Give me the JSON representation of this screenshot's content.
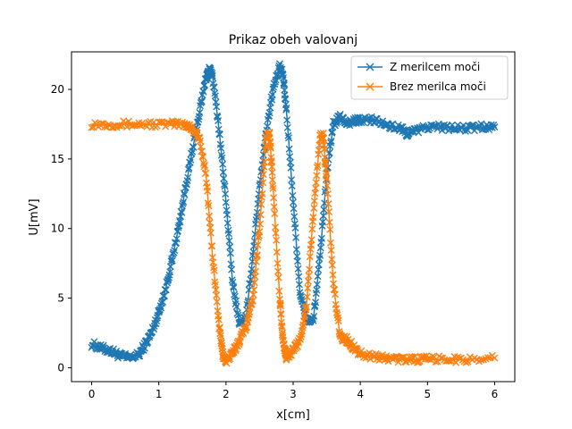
{
  "chart_data": {
    "type": "line",
    "title": "Prikaz obeh valovanj",
    "xlabel": "x[cm]",
    "ylabel": "U[mV]",
    "xlim": [
      -0.3,
      6.3
    ],
    "ylim": [
      -1.0,
      22.7
    ],
    "x_ticks": [
      0,
      1,
      2,
      3,
      4,
      5,
      6
    ],
    "y_ticks": [
      0,
      5,
      10,
      15,
      20
    ],
    "grid": false,
    "legend_position": "upper right",
    "marker": "x",
    "series": [
      {
        "name": "Z merilcem moči",
        "color": "#1f77b4",
        "points": [
          [
            0.0,
            1.7
          ],
          [
            0.15,
            1.4
          ],
          [
            0.3,
            1.2
          ],
          [
            0.4,
            0.9
          ],
          [
            0.55,
            0.7
          ],
          [
            0.7,
            0.9
          ],
          [
            0.8,
            1.7
          ],
          [
            0.9,
            2.6
          ],
          [
            1.0,
            4.0
          ],
          [
            1.1,
            5.6
          ],
          [
            1.2,
            7.8
          ],
          [
            1.3,
            10.2
          ],
          [
            1.4,
            13.0
          ],
          [
            1.5,
            15.6
          ],
          [
            1.6,
            18.2
          ],
          [
            1.7,
            20.8
          ],
          [
            1.75,
            21.4
          ],
          [
            1.8,
            21.0
          ],
          [
            1.9,
            17.0
          ],
          [
            2.0,
            12.0
          ],
          [
            2.1,
            6.0
          ],
          [
            2.2,
            3.2
          ],
          [
            2.3,
            3.6
          ],
          [
            2.4,
            8.0
          ],
          [
            2.5,
            13.0
          ],
          [
            2.6,
            17.0
          ],
          [
            2.7,
            20.0
          ],
          [
            2.8,
            21.6
          ],
          [
            2.85,
            21.0
          ],
          [
            2.9,
            18.5
          ],
          [
            3.0,
            12.0
          ],
          [
            3.1,
            5.5
          ],
          [
            3.2,
            3.4
          ],
          [
            3.3,
            3.4
          ],
          [
            3.4,
            8.0
          ],
          [
            3.5,
            14.0
          ],
          [
            3.6,
            17.5
          ],
          [
            3.7,
            18.0
          ],
          [
            3.8,
            17.6
          ],
          [
            3.9,
            17.7
          ],
          [
            4.0,
            17.8
          ],
          [
            4.2,
            17.8
          ],
          [
            4.4,
            17.4
          ],
          [
            4.6,
            17.2
          ],
          [
            4.7,
            16.8
          ],
          [
            4.8,
            17.0
          ],
          [
            5.0,
            17.3
          ],
          [
            5.2,
            17.3
          ],
          [
            5.4,
            17.2
          ],
          [
            5.6,
            17.2
          ],
          [
            5.8,
            17.3
          ],
          [
            6.0,
            17.3
          ]
        ]
      },
      {
        "name": "Brez merilca moči",
        "color": "#ff7f0e",
        "points": [
          [
            0.0,
            17.5
          ],
          [
            0.3,
            17.5
          ],
          [
            0.6,
            17.5
          ],
          [
            0.9,
            17.5
          ],
          [
            1.2,
            17.5
          ],
          [
            1.4,
            17.5
          ],
          [
            1.5,
            17.2
          ],
          [
            1.6,
            16.5
          ],
          [
            1.7,
            14.0
          ],
          [
            1.8,
            8.0
          ],
          [
            1.9,
            3.0
          ],
          [
            1.95,
            1.0
          ],
          [
            2.0,
            0.5
          ],
          [
            2.1,
            1.0
          ],
          [
            2.2,
            2.0
          ],
          [
            2.3,
            3.0
          ],
          [
            2.4,
            5.0
          ],
          [
            2.5,
            10.0
          ],
          [
            2.6,
            16.5
          ],
          [
            2.65,
            16.8
          ],
          [
            2.7,
            13.0
          ],
          [
            2.8,
            5.0
          ],
          [
            2.85,
            1.8
          ],
          [
            2.9,
            0.8
          ],
          [
            3.0,
            1.2
          ],
          [
            3.1,
            2.0
          ],
          [
            3.2,
            4.5
          ],
          [
            3.3,
            11.0
          ],
          [
            3.4,
            16.6
          ],
          [
            3.45,
            16.6
          ],
          [
            3.5,
            13.5
          ],
          [
            3.6,
            6.0
          ],
          [
            3.7,
            2.2
          ],
          [
            3.8,
            2.0
          ],
          [
            3.9,
            1.5
          ],
          [
            4.0,
            1.0
          ],
          [
            4.2,
            0.8
          ],
          [
            4.4,
            0.7
          ],
          [
            4.6,
            0.6
          ],
          [
            4.8,
            0.6
          ],
          [
            5.0,
            0.6
          ],
          [
            5.3,
            0.6
          ],
          [
            5.6,
            0.6
          ],
          [
            6.0,
            0.7
          ]
        ]
      }
    ]
  }
}
